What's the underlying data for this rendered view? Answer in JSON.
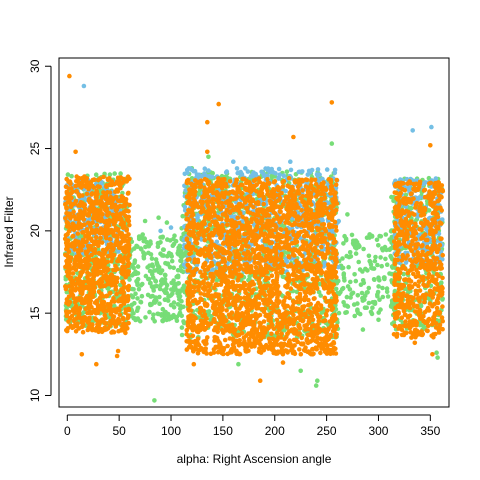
{
  "chart_data": {
    "type": "scatter",
    "title": "",
    "xlabel": "alpha: Right Ascension angle",
    "ylabel": "Infrared Filter",
    "xlim": [
      -8,
      368
    ],
    "ylim": [
      9.3,
      30.5
    ],
    "x_ticks": [
      0,
      50,
      100,
      150,
      200,
      250,
      300,
      350
    ],
    "y_ticks": [
      10,
      15,
      20,
      25,
      30
    ],
    "x_tick_labels": [
      "0",
      "50",
      "100",
      "150",
      "200",
      "250",
      "300",
      "350"
    ],
    "y_tick_labels": [
      "10",
      "15",
      "20",
      "25",
      "30"
    ],
    "grid": false,
    "legend": "none",
    "series": [
      {
        "color": "#77DD77",
        "clusters": [
          {
            "x": [
              -2,
              58
            ],
            "y": [
              14.2,
              23.5
            ],
            "n": 450
          },
          {
            "x": [
              58,
              112
            ],
            "y": [
              14.5,
              19.8
            ],
            "n": 260
          },
          {
            "x": [
              110,
              262
            ],
            "y": [
              13.5,
              23.6
            ],
            "n": 900
          },
          {
            "x": [
              262,
              318
            ],
            "y": [
              14.8,
              19.8
            ],
            "n": 160
          },
          {
            "x": [
              312,
              362
            ],
            "y": [
              14.0,
              23.2
            ],
            "n": 300
          }
        ],
        "points": [
          {
            "x": 84,
            "y": 9.7
          },
          {
            "x": 240,
            "y": 10.6
          },
          {
            "x": 241,
            "y": 10.9
          },
          {
            "x": 255,
            "y": 25.3
          },
          {
            "x": 136,
            "y": 24.5
          },
          {
            "x": 120,
            "y": 23.8
          },
          {
            "x": 357,
            "y": 12.3
          },
          {
            "x": 356,
            "y": 12.6
          },
          {
            "x": 165,
            "y": 11.9
          },
          {
            "x": 225,
            "y": 11.5
          },
          {
            "x": 285,
            "y": 14.0
          },
          {
            "x": 300,
            "y": 14.6
          },
          {
            "x": 75,
            "y": 20.6
          },
          {
            "x": 88,
            "y": 20.8
          },
          {
            "x": 96,
            "y": 20.5
          },
          {
            "x": 270,
            "y": 21.0
          }
        ]
      },
      {
        "color": "#74BFE5",
        "clusters": [
          {
            "x": [
              -2,
              52
            ],
            "y": [
              18.5,
              23.2
            ],
            "n": 200
          },
          {
            "x": [
              112,
              262
            ],
            "y": [
              17.5,
              23.8
            ],
            "n": 650
          },
          {
            "x": [
              315,
              362
            ],
            "y": [
              18.0,
              23.2
            ],
            "n": 220
          }
        ],
        "points": [
          {
            "x": 16,
            "y": 28.8
          },
          {
            "x": 333,
            "y": 26.1
          },
          {
            "x": 351,
            "y": 26.3
          },
          {
            "x": 215,
            "y": 24.2
          },
          {
            "x": 160,
            "y": 24.2
          },
          {
            "x": 90,
            "y": 20.0
          },
          {
            "x": 100,
            "y": 20.2
          },
          {
            "x": 55,
            "y": 20.1
          }
        ]
      },
      {
        "color": "#FF8C00",
        "clusters": [
          {
            "x": [
              -2,
              60
            ],
            "y": [
              13.8,
              23.3
            ],
            "n": 1000
          },
          {
            "x": [
              115,
              260
            ],
            "y": [
              12.5,
              23.2
            ],
            "n": 2400
          },
          {
            "x": [
              315,
              362
            ],
            "y": [
              13.5,
              23.0
            ],
            "n": 600
          }
        ],
        "points": [
          {
            "x": 2,
            "y": 29.4
          },
          {
            "x": 146,
            "y": 27.7
          },
          {
            "x": 255,
            "y": 27.8
          },
          {
            "x": 135,
            "y": 26.6
          },
          {
            "x": 218,
            "y": 25.7
          },
          {
            "x": 350,
            "y": 25.2
          },
          {
            "x": 8,
            "y": 24.8
          },
          {
            "x": 135,
            "y": 24.8
          },
          {
            "x": 186,
            "y": 10.9
          },
          {
            "x": 48,
            "y": 12.4
          },
          {
            "x": 49,
            "y": 12.7
          },
          {
            "x": 14,
            "y": 12.5
          },
          {
            "x": 28,
            "y": 11.9
          },
          {
            "x": 208,
            "y": 12.0
          },
          {
            "x": 122,
            "y": 11.9
          },
          {
            "x": 352,
            "y": 12.5
          },
          {
            "x": 335,
            "y": 13.2
          },
          {
            "x": 56,
            "y": 13.8
          }
        ]
      }
    ]
  }
}
